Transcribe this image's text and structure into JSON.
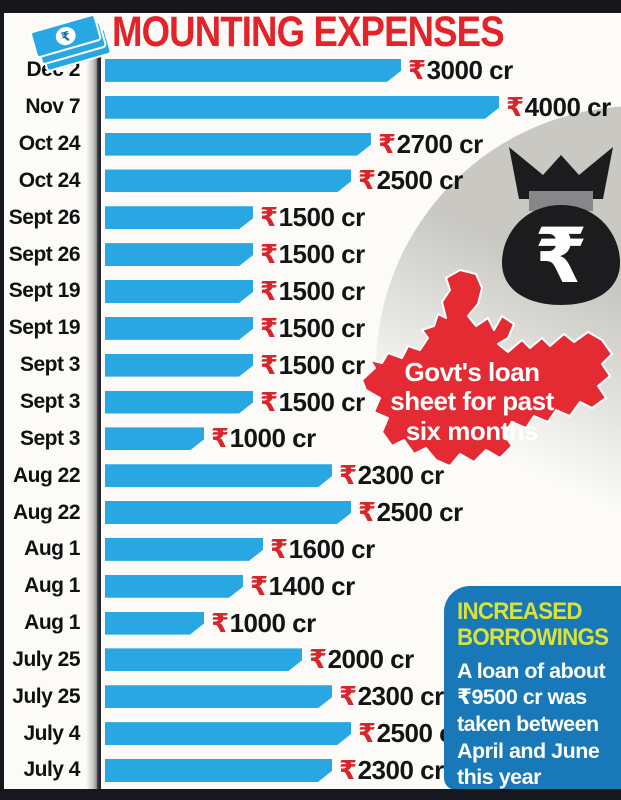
{
  "page": {
    "title": "MOUNTING EXPENSES"
  },
  "colors": {
    "title_red": "#e22329",
    "bar_cyan": "#29a7e2",
    "rupee_red": "#d6252b",
    "map_red": "#e42a33",
    "info_box_blue": "#1878b8",
    "info_heading_lime": "#d7e23a",
    "circle_gray": "#c9c8c3",
    "bag_black": "#1c1c1e"
  },
  "chart_data": {
    "type": "bar",
    "orientation": "horizontal",
    "currency": "₹",
    "unit": "cr",
    "xlim": [
      0,
      4200
    ],
    "grid": false,
    "legend": "none",
    "title": "MOUNTING EXPENSES",
    "rows": [
      {
        "date": "Dec 2",
        "value": 3000
      },
      {
        "date": "Nov 7",
        "value": 4000
      },
      {
        "date": "Oct 24",
        "value": 2700
      },
      {
        "date": "Oct 24",
        "value": 2500
      },
      {
        "date": "Sept 26",
        "value": 1500
      },
      {
        "date": "Sept 26",
        "value": 1500
      },
      {
        "date": "Sept 19",
        "value": 1500
      },
      {
        "date": "Sept 19",
        "value": 1500
      },
      {
        "date": "Sept 3",
        "value": 1500
      },
      {
        "date": "Sept 3",
        "value": 1500
      },
      {
        "date": "Sept 3",
        "value": 1000
      },
      {
        "date": "Aug 22",
        "value": 2300
      },
      {
        "date": "Aug 22",
        "value": 2500
      },
      {
        "date": "Aug 1",
        "value": 1600
      },
      {
        "date": "Aug 1",
        "value": 1400
      },
      {
        "date": "Aug 1",
        "value": 1000
      },
      {
        "date": "July 25",
        "value": 2000
      },
      {
        "date": "July 25",
        "value": 2300
      },
      {
        "date": "July 4",
        "value": 2500
      },
      {
        "date": "July 4",
        "value": 2300
      }
    ]
  },
  "map_callout": {
    "lines": [
      "Govt's loan",
      "sheet for past",
      "six months"
    ]
  },
  "info_box": {
    "heading_lines": [
      "INCREASED",
      "BORROWINGS"
    ],
    "body_lines": [
      "A loan of about",
      "₹9500 cr was",
      "taken between",
      "April and June",
      "this year"
    ]
  },
  "icons": {
    "money_bag_rupee": "₹",
    "banknote_rupee": "₹"
  }
}
